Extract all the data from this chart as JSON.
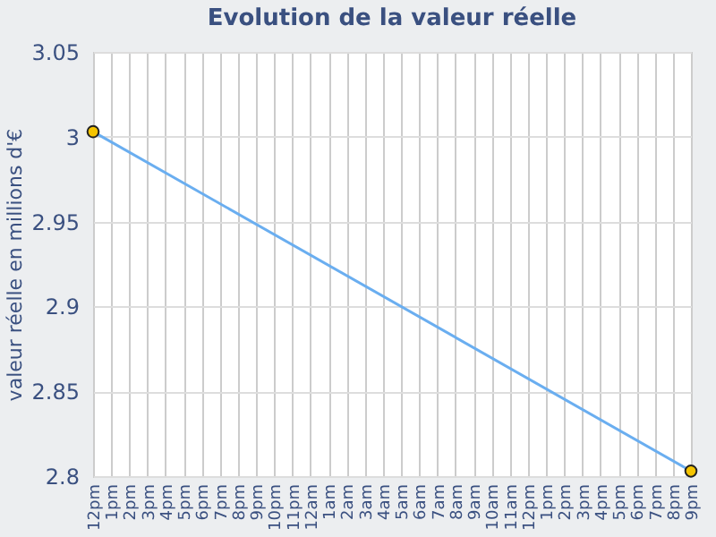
{
  "chart_data": {
    "type": "line",
    "title": "Evolution de la valeur réelle",
    "ylabel": "valeur réelle en millions d'€",
    "categories": [
      "12pm",
      "1pm",
      "2pm",
      "3pm",
      "4pm",
      "5pm",
      "6pm",
      "7pm",
      "8pm",
      "9pm",
      "10pm",
      "11pm",
      "12am",
      "1am",
      "2am",
      "3am",
      "4am",
      "5am",
      "6am",
      "7am",
      "8am",
      "9am",
      "10am",
      "11am",
      "12pm",
      "1pm",
      "2pm",
      "3pm",
      "4pm",
      "5pm",
      "6pm",
      "7pm",
      "8pm",
      "9pm"
    ],
    "series": [
      {
        "color": "#6aaef0",
        "values": [
          3.003,
          null,
          null,
          null,
          null,
          null,
          null,
          null,
          null,
          null,
          null,
          null,
          null,
          null,
          null,
          null,
          null,
          null,
          null,
          null,
          null,
          null,
          null,
          null,
          null,
          null,
          null,
          null,
          null,
          null,
          null,
          null,
          null,
          2.803
        ]
      }
    ],
    "ylim": [
      2.8,
      3.05
    ],
    "yticks": [
      2.8,
      2.85,
      2.9,
      2.95,
      3,
      3.05
    ],
    "grid": true,
    "marker": "circle",
    "line_style": "solid"
  }
}
